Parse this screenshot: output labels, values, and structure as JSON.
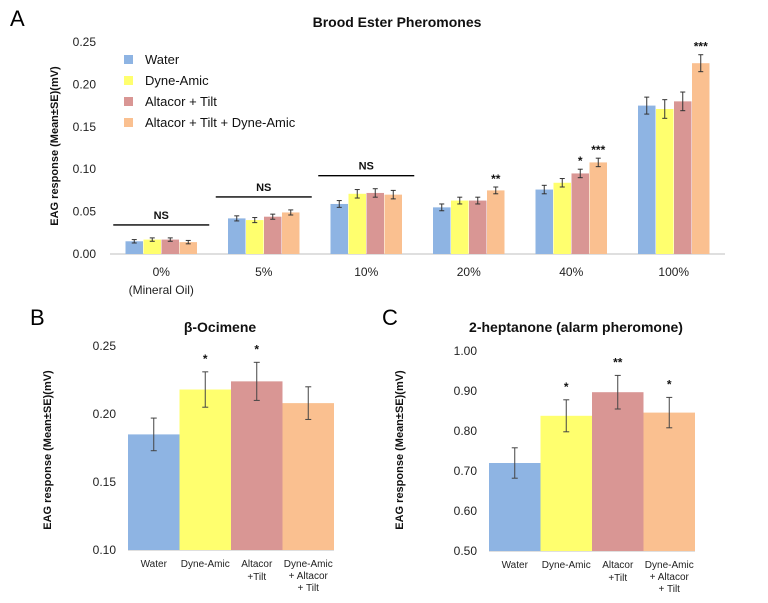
{
  "colors": {
    "water": "#8EB4E3",
    "dyne": "#FFFF6E",
    "altacor": "#D99694",
    "combo": "#FAC090"
  },
  "chart_data": [
    {
      "panel": "A",
      "type": "bar",
      "title": "Brood Ester Pheromones",
      "ylabel": "EAG response (Mean±SE)(mV)",
      "ylim": [
        0,
        0.25
      ],
      "yticks": [
        "0.00",
        "0.05",
        "0.10",
        "0.15",
        "0.20",
        "0.25"
      ],
      "legend": "top-left",
      "categories": [
        "0%",
        "5%",
        "10%",
        "20%",
        "40%",
        "100%"
      ],
      "category_sublabels": [
        "(Mineral Oil)",
        "",
        "",
        "",
        "",
        ""
      ],
      "series": [
        {
          "name": "Water",
          "values": [
            0.015,
            0.042,
            0.059,
            0.055,
            0.076,
            0.175
          ],
          "errors": [
            0.002,
            0.003,
            0.004,
            0.004,
            0.005,
            0.01
          ]
        },
        {
          "name": "Dyne-Amic",
          "values": [
            0.017,
            0.04,
            0.071,
            0.063,
            0.084,
            0.171
          ],
          "errors": [
            0.002,
            0.003,
            0.005,
            0.004,
            0.005,
            0.011
          ]
        },
        {
          "name": "Altacor + Tilt",
          "values": [
            0.017,
            0.044,
            0.072,
            0.063,
            0.095,
            0.18
          ],
          "errors": [
            0.002,
            0.003,
            0.005,
            0.004,
            0.005,
            0.011
          ]
        },
        {
          "name": "Altacor + Tilt + Dyne-Amic",
          "values": [
            0.014,
            0.049,
            0.07,
            0.075,
            0.108,
            0.225
          ],
          "errors": [
            0.002,
            0.003,
            0.005,
            0.004,
            0.005,
            0.01
          ]
        }
      ],
      "significance": [
        {
          "category": 0,
          "label": "NS",
          "type": "bracket"
        },
        {
          "category": 1,
          "label": "NS",
          "type": "bracket"
        },
        {
          "category": 2,
          "label": "NS",
          "type": "bracket"
        },
        {
          "category": 3,
          "series": 3,
          "label": "**"
        },
        {
          "category": 4,
          "series": 2,
          "label": "*"
        },
        {
          "category": 4,
          "series": 3,
          "label": "***"
        },
        {
          "category": 5,
          "series": 3,
          "label": "***"
        }
      ]
    },
    {
      "panel": "B",
      "type": "bar",
      "title": "β-Ocimene",
      "ylabel": "EAG response (Mean±SE)(mV)",
      "ylim": [
        0.1,
        0.25
      ],
      "yticks": [
        "0.10",
        "0.15",
        "0.20",
        "0.25"
      ],
      "categories": [
        [
          "Water"
        ],
        [
          "Dyne-Amic"
        ],
        [
          "Altacor",
          "+Tilt"
        ],
        [
          "Dyne-Amic",
          "+ Altacor",
          "+ Tilt"
        ]
      ],
      "values": [
        0.185,
        0.218,
        0.224,
        0.208
      ],
      "errors": [
        0.012,
        0.013,
        0.014,
        0.012
      ],
      "significance": [
        "",
        "*",
        "*",
        ""
      ]
    },
    {
      "panel": "C",
      "type": "bar",
      "title": "2-heptanone (alarm pheromone)",
      "ylabel": "EAG response (Mean±SE)(mV)",
      "ylim": [
        0.5,
        1.0
      ],
      "yticks": [
        "0.50",
        "0.60",
        "0.70",
        "0.80",
        "0.90",
        "1.00"
      ],
      "categories": [
        [
          "Water"
        ],
        [
          "Dyne-Amic"
        ],
        [
          "Altacor",
          "+Tilt"
        ],
        [
          "Dyne-Amic",
          "+ Altacor",
          "+ Tilt"
        ]
      ],
      "values": [
        0.72,
        0.838,
        0.897,
        0.846
      ],
      "errors": [
        0.038,
        0.04,
        0.042,
        0.038
      ],
      "significance": [
        "",
        "*",
        "**",
        "*"
      ]
    }
  ]
}
